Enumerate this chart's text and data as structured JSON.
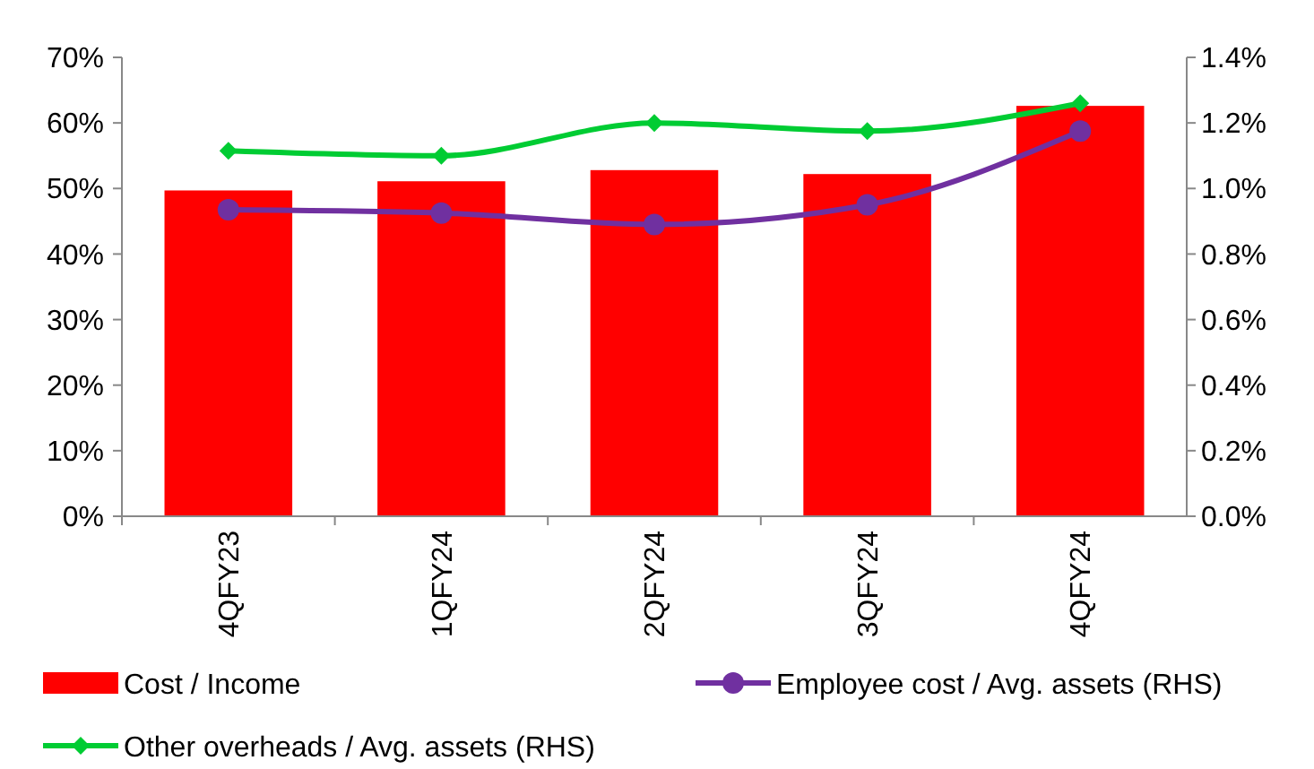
{
  "chart_data": {
    "type": "bar",
    "categories": [
      "4QFY23",
      "1QFY24",
      "2QFY24",
      "3QFY24",
      "4QFY24"
    ],
    "series": [
      {
        "name": "Cost / Income",
        "color": "#ff0000",
        "values": [
          49.7,
          51.1,
          52.8,
          52.2,
          62.6
        ]
      },
      {
        "name": "Employee cost / Avg. assets (RHS)",
        "type": "line",
        "axis": "y2",
        "color": "#7030a0",
        "marker": "circle",
        "values": [
          0.935,
          0.925,
          0.89,
          0.95,
          1.175
        ]
      },
      {
        "name": "Other overheads / Avg. assets (RHS)",
        "type": "line",
        "axis": "y2",
        "color": "#00cc33",
        "marker": "diamond",
        "values": [
          1.115,
          1.1,
          1.2,
          1.175,
          1.26
        ]
      }
    ],
    "ylim": [
      0,
      70
    ],
    "yticks": [
      {
        "value": 0,
        "label": "0%"
      },
      {
        "value": 10,
        "label": "10%"
      },
      {
        "value": 20,
        "label": "20%"
      },
      {
        "value": 30,
        "label": "30%"
      },
      {
        "value": 40,
        "label": "40%"
      },
      {
        "value": 50,
        "label": "50%"
      },
      {
        "value": 60,
        "label": "60%"
      },
      {
        "value": 70,
        "label": "70%"
      }
    ],
    "y2lim": [
      0,
      1.4
    ],
    "y2ticks": [
      {
        "value": 0,
        "label": "0.0%"
      },
      {
        "value": 0.2,
        "label": "0.2%"
      },
      {
        "value": 0.4,
        "label": "0.4%"
      },
      {
        "value": 0.6,
        "label": "0.6%"
      },
      {
        "value": 0.8,
        "label": "0.8%"
      },
      {
        "value": 1.0,
        "label": "1.0%"
      },
      {
        "value": 1.2,
        "label": "1.2%"
      },
      {
        "value": 1.4,
        "label": "1.4%"
      }
    ],
    "grid": false,
    "legend": "bottom"
  }
}
